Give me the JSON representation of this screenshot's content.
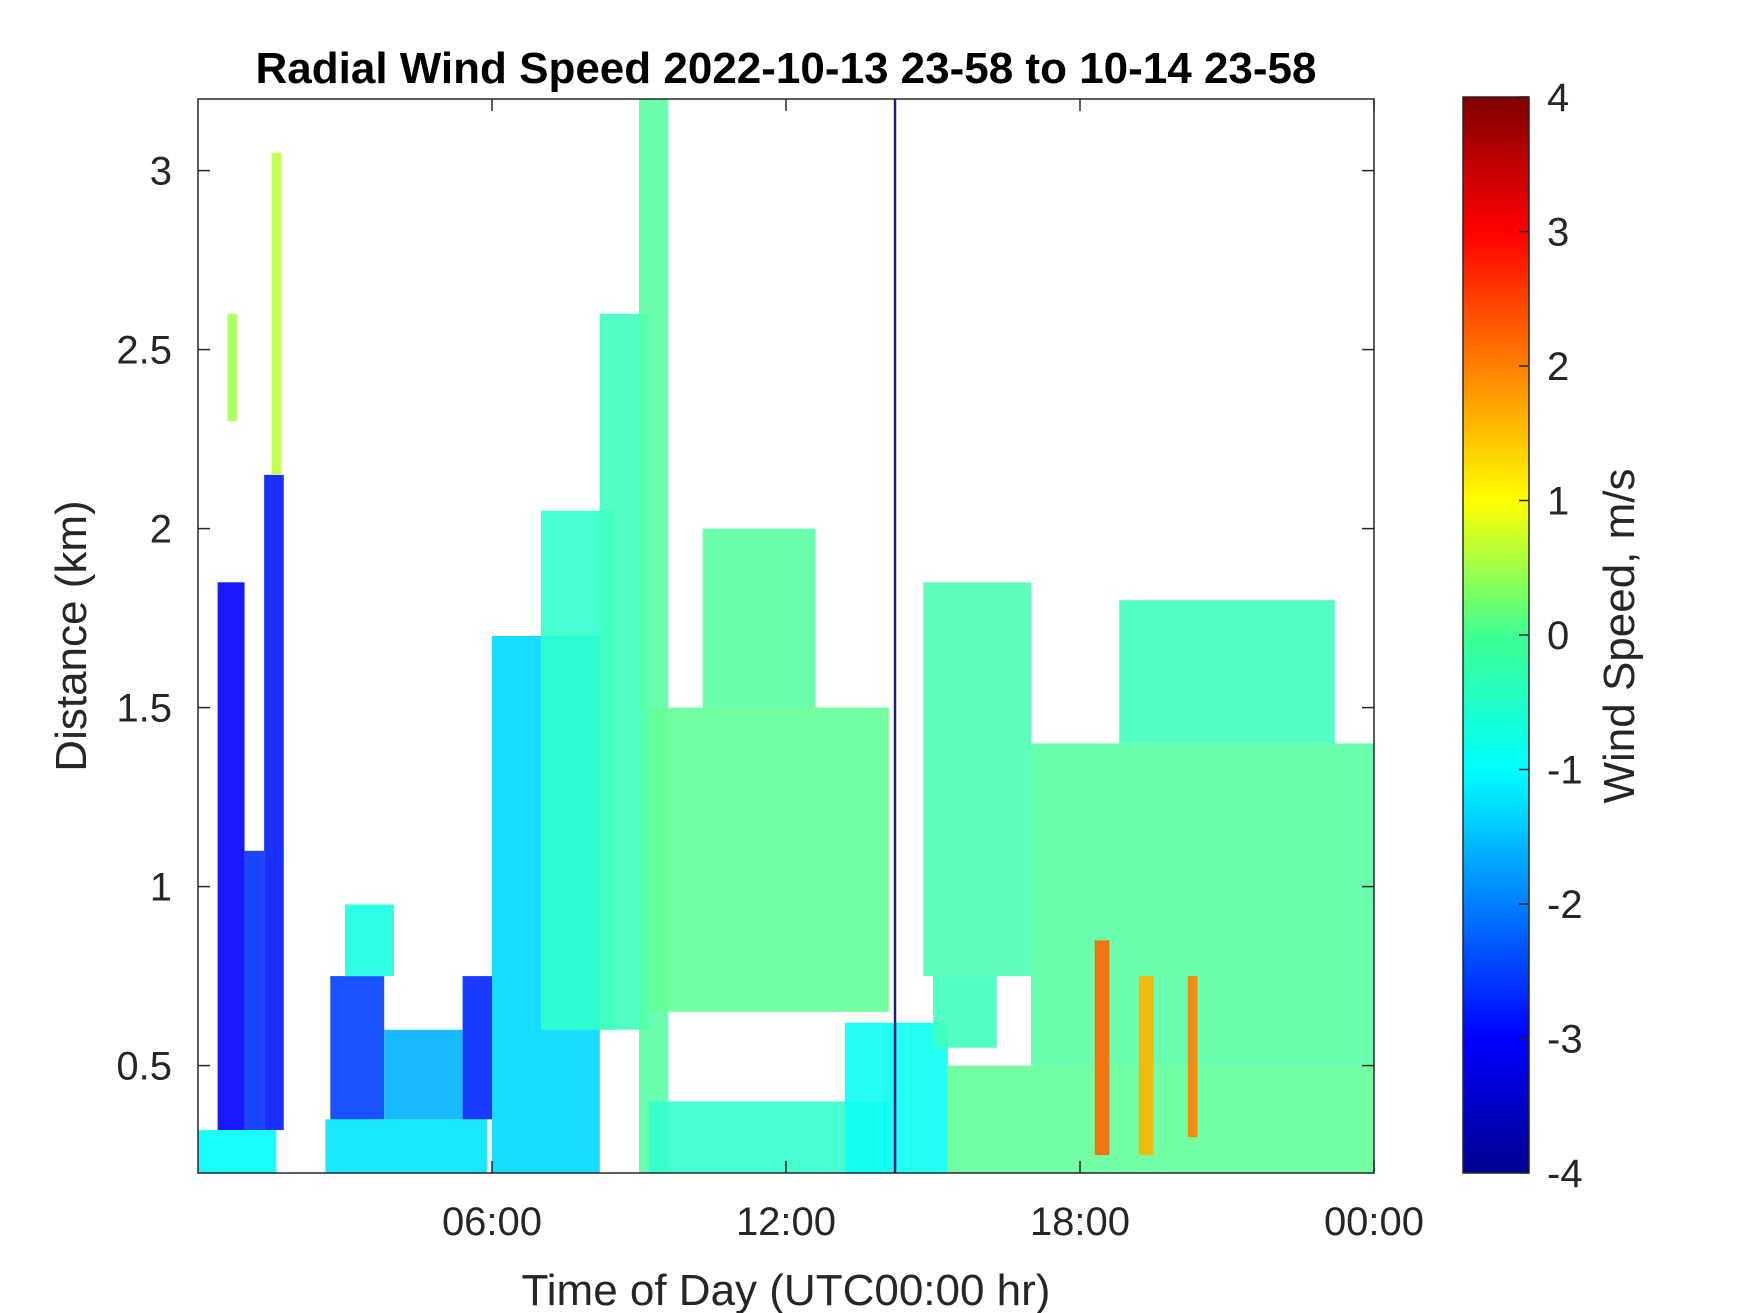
{
  "chart_data": {
    "type": "heatmap",
    "title": "Radial Wind Speed 2022-10-13 23-58 to 10-14 23-58",
    "xlabel": "Time of Day (UTC00:00 hr)",
    "ylabel": "Distance (km)",
    "colorbar_label": "Wind Speed, m/s",
    "colormap": "jet",
    "x_unit": "hours",
    "xlim": [
      0,
      24
    ],
    "ylim": [
      0.2,
      3.2
    ],
    "clim": [
      -4,
      4
    ],
    "x_ticks": [
      6,
      12,
      18,
      24
    ],
    "x_tick_labels": [
      "06:00",
      "12:00",
      "18:00",
      "00:00"
    ],
    "y_ticks": [
      0.5,
      1,
      1.5,
      2,
      2.5,
      3
    ],
    "y_tick_labels": [
      "0.5",
      "1",
      "1.5",
      "2",
      "2.5",
      "3"
    ],
    "colorbar_ticks": [
      -4,
      -3,
      -2,
      -1,
      0,
      1,
      2,
      3,
      4
    ],
    "colorbar_tick_labels": [
      "-4",
      "-3",
      "-2",
      "-1",
      "0",
      "1",
      "2",
      "3",
      "4"
    ],
    "regions": [
      {
        "t0": 0.0,
        "t1": 1.6,
        "h0": 0.2,
        "h1": 0.32,
        "v": -1.0
      },
      {
        "t0": 0.4,
        "t1": 0.95,
        "h0": 0.32,
        "h1": 1.85,
        "v": -3.0
      },
      {
        "t0": 0.95,
        "t1": 1.35,
        "h0": 0.32,
        "h1": 1.1,
        "v": -2.6
      },
      {
        "t0": 1.35,
        "t1": 1.75,
        "h0": 0.32,
        "h1": 2.15,
        "v": -2.8
      },
      {
        "t0": 0.6,
        "t1": 0.8,
        "h0": 2.3,
        "h1": 2.6,
        "v": 0.3
      },
      {
        "t0": 1.5,
        "t1": 1.7,
        "h0": 2.15,
        "h1": 3.05,
        "v": 0.5
      },
      {
        "t0": 2.6,
        "t1": 5.9,
        "h0": 0.2,
        "h1": 0.35,
        "v": -1.2
      },
      {
        "t0": 2.7,
        "t1": 3.8,
        "h0": 0.35,
        "h1": 0.75,
        "v": -2.5
      },
      {
        "t0": 3.0,
        "t1": 4.0,
        "h0": 0.75,
        "h1": 0.95,
        "v": -0.8
      },
      {
        "t0": 3.8,
        "t1": 5.4,
        "h0": 0.35,
        "h1": 0.6,
        "v": -1.6
      },
      {
        "t0": 5.4,
        "t1": 6.0,
        "h0": 0.35,
        "h1": 0.75,
        "v": -2.7
      },
      {
        "t0": 6.0,
        "t1": 8.2,
        "h0": 0.2,
        "h1": 1.7,
        "v": -1.3
      },
      {
        "t0": 7.0,
        "t1": 8.5,
        "h0": 0.6,
        "h1": 2.05,
        "v": -0.6
      },
      {
        "t0": 8.2,
        "t1": 9.2,
        "h0": 0.6,
        "h1": 2.6,
        "v": -0.5
      },
      {
        "t0": 9.0,
        "t1": 9.6,
        "h0": 0.2,
        "h1": 3.2,
        "v": -0.3
      },
      {
        "t0": 9.2,
        "t1": 14.1,
        "h0": 0.65,
        "h1": 1.5,
        "v": -0.2
      },
      {
        "t0": 10.3,
        "t1": 12.6,
        "h0": 1.5,
        "h1": 2.0,
        "v": -0.3
      },
      {
        "t0": 9.2,
        "t1": 14.1,
        "h0": 0.2,
        "h1": 0.4,
        "v": -0.6
      },
      {
        "t0": 13.2,
        "t1": 15.3,
        "h0": 0.2,
        "h1": 0.62,
        "v": -0.9
      },
      {
        "t0": 14.8,
        "t1": 17.0,
        "h0": 0.75,
        "h1": 1.85,
        "v": -0.4
      },
      {
        "t0": 15.0,
        "t1": 16.3,
        "h0": 0.55,
        "h1": 0.75,
        "v": -0.5
      },
      {
        "t0": 15.3,
        "t1": 24.0,
        "h0": 0.2,
        "h1": 0.5,
        "v": -0.2
      },
      {
        "t0": 17.0,
        "t1": 24.0,
        "h0": 0.5,
        "h1": 1.4,
        "v": -0.3
      },
      {
        "t0": 18.8,
        "t1": 23.2,
        "h0": 1.4,
        "h1": 1.8,
        "v": -0.5
      },
      {
        "t0": 18.3,
        "t1": 18.6,
        "h0": 0.25,
        "h1": 0.85,
        "v": 2.2
      },
      {
        "t0": 19.2,
        "t1": 19.5,
        "h0": 0.25,
        "h1": 0.75,
        "v": 1.6
      },
      {
        "t0": 20.2,
        "t1": 20.4,
        "h0": 0.3,
        "h1": 0.75,
        "v": 2.0
      },
      {
        "t0": 14.2,
        "t1": 14.25,
        "h0": 0.2,
        "h1": 3.2,
        "v": -4.0
      }
    ]
  }
}
